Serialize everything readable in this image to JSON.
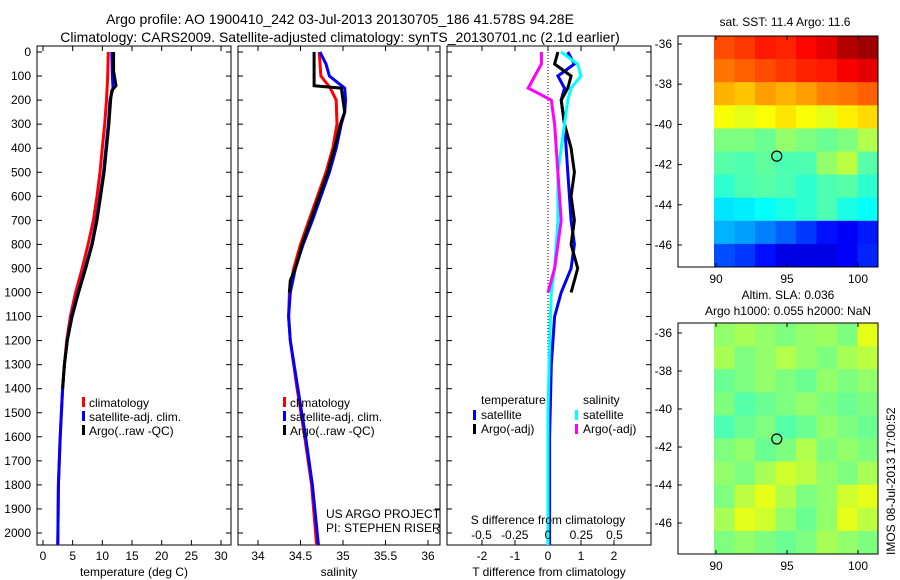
{
  "title": {
    "line1": "Argo profile: AO 1900410_242 03-Jul-2013 20130705_186 41.578S 94.28E",
    "line2": "Climatology: CARS2009. Satellite-adjusted climatology: synTS_20130701.nc (2.1d earlier)"
  },
  "colors": {
    "climatology": "#ff0000",
    "satellite": "#0000ff",
    "argo": "#000000",
    "sal_satellite": "#00ffff",
    "sal_argo": "#ff00ff"
  },
  "chart_data": [
    {
      "type": "line",
      "name": "temperature",
      "xlabel": "temperature (deg C)",
      "xlim": [
        -1,
        31.5
      ],
      "ylim": [
        2050,
        0
      ],
      "xticks": [
        "0",
        "5",
        "10",
        "15",
        "20",
        "25",
        "30"
      ],
      "yticks": [
        "0",
        "100",
        "200",
        "300",
        "400",
        "500",
        "600",
        "700",
        "800",
        "900",
        "1000",
        "1100",
        "1200",
        "1300",
        "1400",
        "1500",
        "1600",
        "1700",
        "1800",
        "1900",
        "2000"
      ],
      "legend": [
        "climatology",
        "satellite-adj. clim.",
        "Argo(..raw -QC)"
      ],
      "series": [
        {
          "name": "climatology",
          "depth": [
            0,
            100,
            200,
            300,
            400,
            500,
            600,
            700,
            800,
            900,
            1000,
            1100,
            1200,
            1300,
            1400,
            1600,
            1800,
            2050
          ],
          "values": [
            11.0,
            10.9,
            10.7,
            10.4,
            10.0,
            9.6,
            9.1,
            8.5,
            7.6,
            6.6,
            5.5,
            4.6,
            4.0,
            3.6,
            3.3,
            2.9,
            2.6,
            2.5
          ]
        },
        {
          "name": "satellite-adj. clim.",
          "depth": [
            0,
            100,
            150,
            200,
            300,
            400,
            500,
            600,
            700,
            800,
            900,
            1000,
            1100,
            1200,
            1300,
            1400,
            1600,
            1800,
            2050
          ],
          "values": [
            11.6,
            11.7,
            11.8,
            11.3,
            11.0,
            10.6,
            10.2,
            9.6,
            9.0,
            8.2,
            7.1,
            5.9,
            4.8,
            4.1,
            3.6,
            3.3,
            2.9,
            2.6,
            2.5
          ]
        },
        {
          "name": "Argo(..raw -QC)",
          "depth": [
            0,
            80,
            140,
            160,
            200,
            300,
            400,
            500,
            600,
            700,
            800,
            900,
            1000,
            1100,
            1200,
            1300,
            1400
          ],
          "values": [
            11.9,
            11.9,
            12.3,
            11.6,
            11.4,
            11.1,
            10.7,
            10.3,
            9.7,
            9.1,
            8.3,
            7.2,
            6.0,
            4.9,
            4.1,
            3.6,
            3.3
          ]
        }
      ]
    },
    {
      "type": "line",
      "name": "salinity",
      "xlabel": "salinity",
      "xlim": [
        33.8,
        36.1
      ],
      "ylim": [
        2050,
        0
      ],
      "xticks": [
        "34",
        "34.5",
        "35",
        "35.5",
        "36"
      ],
      "legend": [
        "climatology",
        "satellite-adj. clim.",
        "Argo(..raw -QC)"
      ],
      "annotation": [
        "US ARGO PROJECT",
        "PI: STEPHEN RISER"
      ],
      "series": [
        {
          "name": "climatology",
          "depth": [
            0,
            100,
            150,
            200,
            300,
            400,
            500,
            600,
            700,
            800,
            900,
            1000,
            1100,
            1200,
            1400,
            1600,
            1800,
            2050
          ],
          "values": [
            34.72,
            34.74,
            34.85,
            34.92,
            34.93,
            34.88,
            34.8,
            34.7,
            34.6,
            34.5,
            34.42,
            34.37,
            34.36,
            34.38,
            34.46,
            34.55,
            34.63,
            34.69
          ]
        },
        {
          "name": "satellite-adj. clim.",
          "depth": [
            0,
            50,
            100,
            150,
            200,
            250,
            300,
            400,
            500,
            600,
            700,
            800,
            900,
            1000,
            1100,
            1200,
            1400,
            1600,
            1800,
            2050
          ],
          "values": [
            34.73,
            34.8,
            34.84,
            35.02,
            35.03,
            35.02,
            34.98,
            34.92,
            34.84,
            34.74,
            34.64,
            34.53,
            34.44,
            34.38,
            34.36,
            34.38,
            34.47,
            34.56,
            34.64,
            34.71
          ]
        },
        {
          "name": "Argo(..raw -QC)",
          "depth": [
            0,
            100,
            140,
            150,
            200,
            250,
            300,
            400,
            500,
            600,
            700,
            800,
            900,
            950,
            1000
          ],
          "values": [
            34.66,
            34.66,
            34.66,
            34.98,
            35.0,
            35.02,
            34.97,
            34.9,
            34.82,
            34.72,
            34.62,
            34.52,
            34.44,
            34.38,
            34.37
          ]
        }
      ]
    },
    {
      "type": "line",
      "name": "difference",
      "xlabel": "T difference from climatology",
      "xlabel_top": "S difference from climatology",
      "xlim": [
        -3,
        3.1
      ],
      "ylim": [
        2050,
        0
      ],
      "xticks": [
        "-2",
        "-1",
        "0",
        "1",
        "2"
      ],
      "xticks_top": [
        "-0.5",
        "-0.25",
        "0",
        "0.25",
        "0.5"
      ],
      "legend_groups": [
        {
          "title": "temperature",
          "items": [
            "satellite",
            "Argo(-adj)"
          ]
        },
        {
          "title": "salinity",
          "items": [
            "satellite",
            "Argo(-adj)"
          ]
        }
      ],
      "series": [
        {
          "name": "temperature satellite",
          "depth": [
            0,
            50,
            100,
            150,
            200,
            300,
            500,
            700,
            800,
            900,
            1000,
            1100,
            1300,
            1600,
            2050
          ],
          "values": [
            0.6,
            0.8,
            0.3,
            0.5,
            0.4,
            0.5,
            0.6,
            0.7,
            0.8,
            0.7,
            0.4,
            0.2,
            0.1,
            0.05,
            0.05
          ]
        },
        {
          "name": "temperature Argo(-adj)",
          "depth": [
            0,
            50,
            100,
            150,
            200,
            300,
            400,
            500,
            600,
            700,
            800,
            900,
            1000
          ],
          "values": [
            0.3,
            0.2,
            0.7,
            0.6,
            0.4,
            0.5,
            0.7,
            0.8,
            0.7,
            0.8,
            0.7,
            0.9,
            0.7
          ]
        },
        {
          "name": "salinity satellite",
          "depth": [
            0,
            50,
            100,
            150,
            200,
            300,
            500,
            700,
            900,
            1000,
            1200,
            1500,
            2050
          ],
          "values": [
            0.4,
            0.9,
            1.0,
            0.7,
            0.6,
            0.5,
            0.3,
            0.3,
            0.2,
            0.1,
            0.05,
            0.0,
            0.0
          ]
        },
        {
          "name": "salinity Argo(-adj)",
          "depth": [
            0,
            50,
            100,
            150,
            200,
            300,
            500,
            700,
            900,
            1000
          ],
          "values": [
            -0.2,
            -0.2,
            -0.4,
            -0.6,
            0.1,
            0.2,
            0.3,
            0.4,
            0.2,
            0.0
          ]
        }
      ]
    },
    {
      "type": "heatmap",
      "name": "sst-map",
      "title": "sat. SST: 11.4 Argo: 11.6",
      "xticks": [
        "90",
        "95",
        "100"
      ],
      "yticks": [
        "-36",
        "-38",
        "-40",
        "-42",
        "-44",
        "-46"
      ],
      "marker": {
        "lon": 94.28,
        "lat": -41.578
      },
      "grid": [
        [
          0.8,
          0.82,
          0.85,
          0.84,
          0.87,
          0.9,
          0.95,
          0.97
        ],
        [
          0.76,
          0.78,
          0.8,
          0.82,
          0.84,
          0.85,
          0.88,
          0.9
        ],
        [
          0.7,
          0.68,
          0.72,
          0.7,
          0.72,
          0.75,
          0.76,
          0.78
        ],
        [
          0.62,
          0.6,
          0.62,
          0.65,
          0.62,
          0.6,
          0.64,
          0.66
        ],
        [
          0.5,
          0.5,
          0.48,
          0.52,
          0.5,
          0.48,
          0.5,
          0.55
        ],
        [
          0.46,
          0.45,
          0.47,
          0.45,
          0.45,
          0.52,
          0.56,
          0.46
        ],
        [
          0.42,
          0.45,
          0.46,
          0.45,
          0.42,
          0.45,
          0.46,
          0.42
        ],
        [
          0.35,
          0.36,
          0.38,
          0.4,
          0.42,
          0.45,
          0.4,
          0.38
        ],
        [
          0.3,
          0.28,
          0.25,
          0.22,
          0.18,
          0.14,
          0.12,
          0.15
        ],
        [
          0.2,
          0.18,
          0.14,
          0.1,
          0.1,
          0.1,
          0.12,
          0.16
        ]
      ]
    },
    {
      "type": "heatmap",
      "name": "sla-map",
      "title": "Altim. SLA: 0.036",
      "subtitle": "Argo h1000: 0.055 h2000: NaN",
      "xticks": [
        "90",
        "95",
        "100"
      ],
      "yticks": [
        "-36",
        "-38",
        "-40",
        "-42",
        "-44",
        "-46"
      ],
      "marker": {
        "lon": 94.28,
        "lat": -41.578
      },
      "grid": [
        [
          0.52,
          0.54,
          0.52,
          0.5,
          0.52,
          0.53,
          0.5,
          0.6
        ],
        [
          0.54,
          0.5,
          0.52,
          0.55,
          0.52,
          0.5,
          0.54,
          0.56
        ],
        [
          0.48,
          0.5,
          0.52,
          0.5,
          0.48,
          0.52,
          0.5,
          0.52
        ],
        [
          0.5,
          0.46,
          0.48,
          0.5,
          0.52,
          0.5,
          0.48,
          0.5
        ],
        [
          0.45,
          0.48,
          0.5,
          0.46,
          0.48,
          0.52,
          0.5,
          0.48
        ],
        [
          0.5,
          0.52,
          0.48,
          0.5,
          0.55,
          0.5,
          0.52,
          0.5
        ],
        [
          0.52,
          0.5,
          0.54,
          0.58,
          0.56,
          0.52,
          0.5,
          0.54
        ],
        [
          0.5,
          0.56,
          0.6,
          0.55,
          0.5,
          0.52,
          0.58,
          0.6
        ],
        [
          0.54,
          0.6,
          0.58,
          0.52,
          0.48,
          0.52,
          0.6,
          0.56
        ],
        [
          0.5,
          0.52,
          0.5,
          0.48,
          0.5,
          0.54,
          0.52,
          0.5
        ]
      ]
    }
  ],
  "timestamp": "IMOS 08-Jul-2013 17:00:52"
}
